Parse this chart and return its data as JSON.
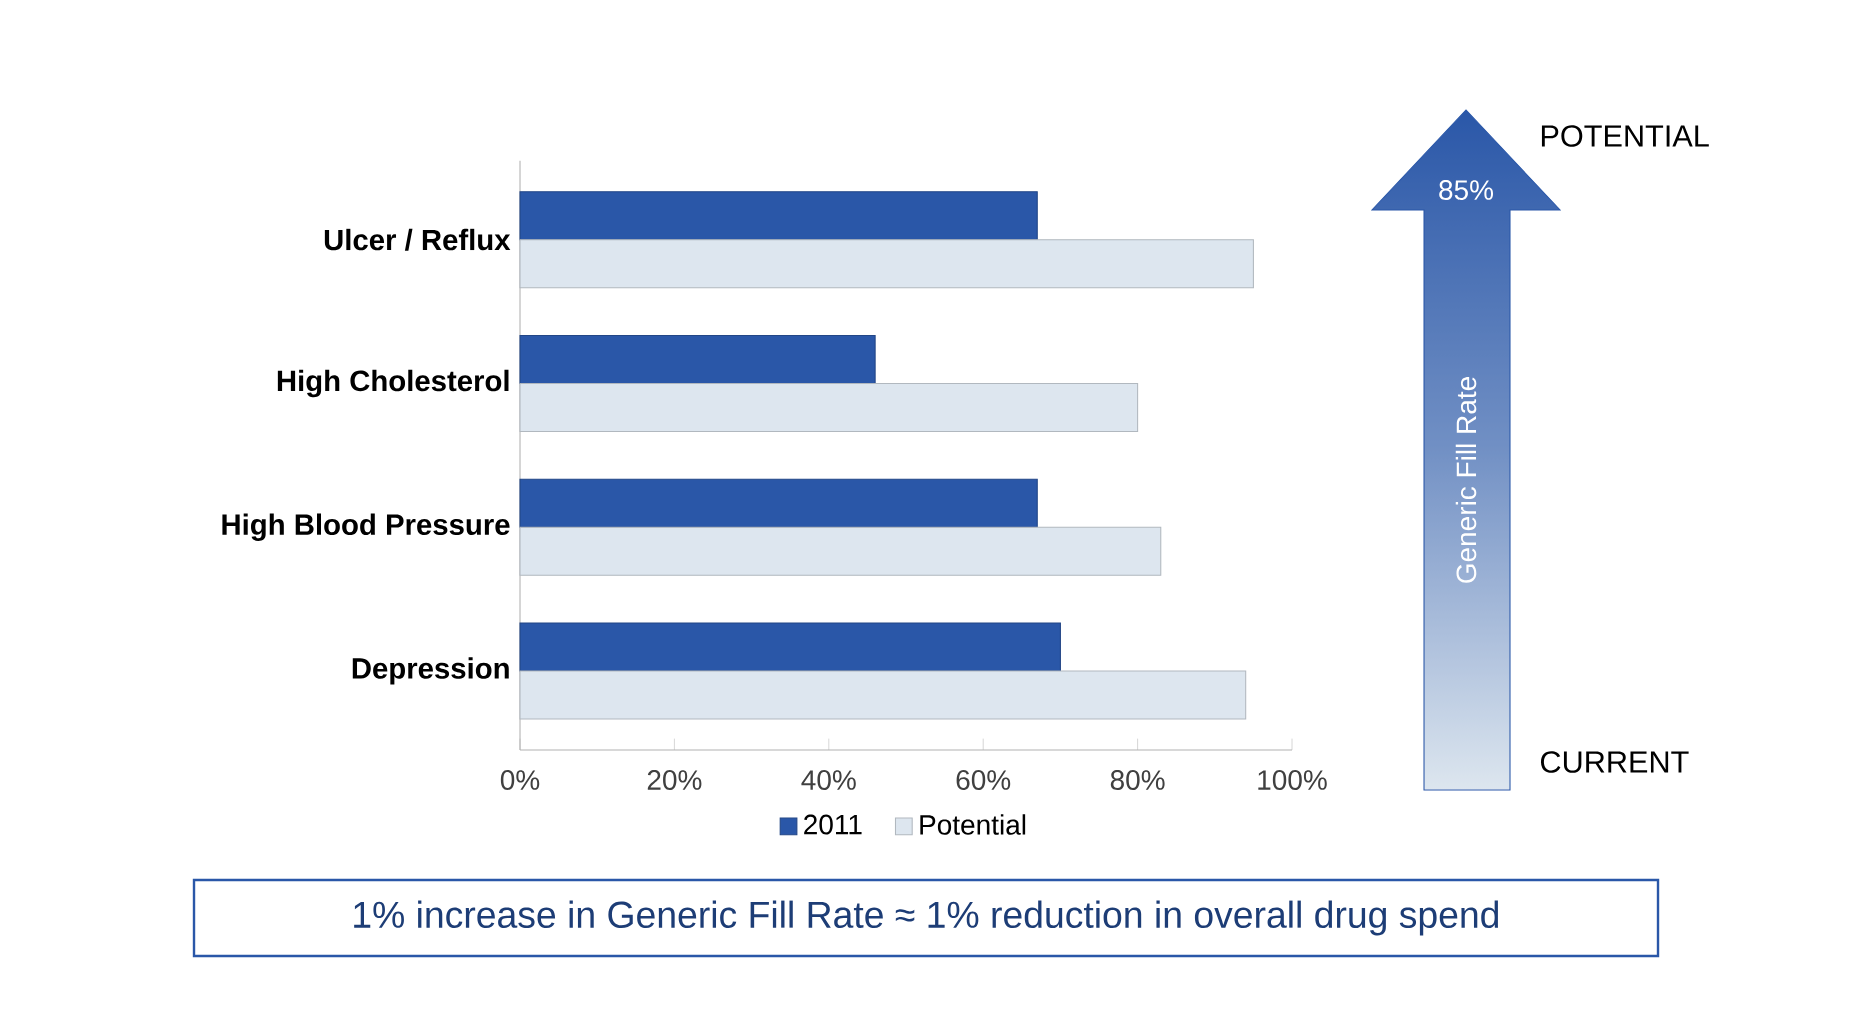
{
  "chart_data": {
    "type": "bar",
    "orientation": "horizontal",
    "categories": [
      "Ulcer / Reflux",
      "High Cholesterol",
      "High Blood Pressure",
      "Depression"
    ],
    "series": [
      {
        "name": "2011",
        "color": "#2a57a8",
        "values": [
          67,
          46,
          67,
          70
        ]
      },
      {
        "name": "Potential",
        "color": "#dde6ef",
        "values": [
          95,
          80,
          83,
          94
        ]
      }
    ],
    "xlim": [
      0,
      100
    ],
    "xticks": [
      {
        "value": 0,
        "label": "0%"
      },
      {
        "value": 20,
        "label": "20%"
      },
      {
        "value": 40,
        "label": "40%"
      },
      {
        "value": 60,
        "label": "60%"
      },
      {
        "value": 80,
        "label": "80%"
      },
      {
        "value": 100,
        "label": "100%"
      }
    ],
    "legend": "bottom",
    "annotations": [
      "POTENTIAL",
      "85%",
      "Generic Fill Rate",
      "CURRENT",
      "1% increase in Generic Fill Rate ≈ 1% reduction in overall drug spend"
    ]
  }
}
